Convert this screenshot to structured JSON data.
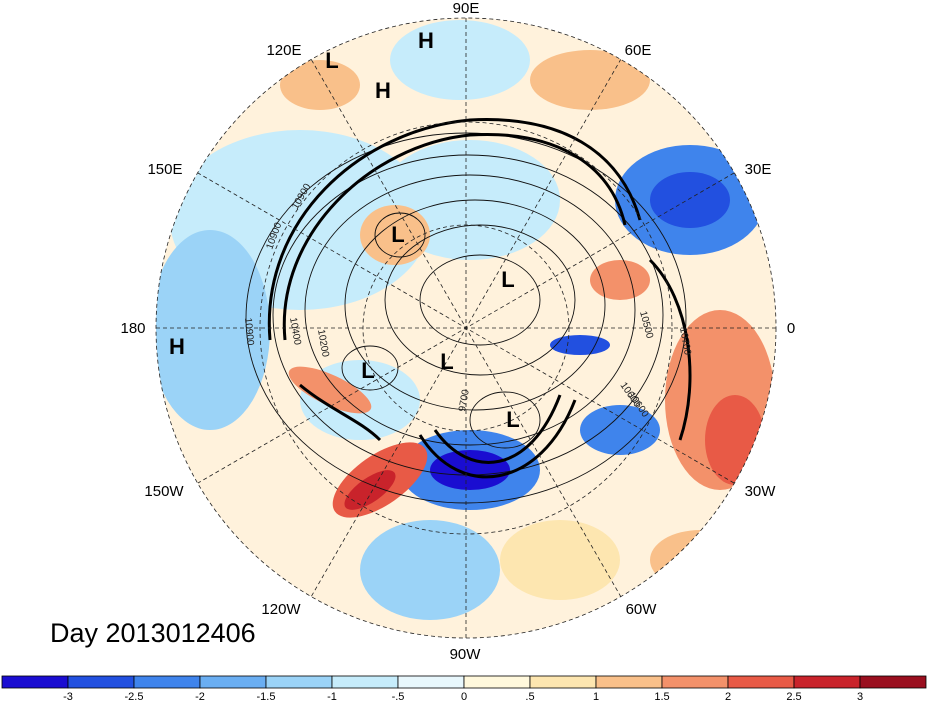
{
  "title": "Day 2013012406",
  "longitude_labels": [
    "90E",
    "60E",
    "30E",
    "0",
    "30W",
    "60W",
    "90W",
    "120W",
    "150W",
    "180",
    "150E",
    "120E"
  ],
  "pressure_centers": [
    {
      "type": "H"
    },
    {
      "type": "L"
    },
    {
      "type": "H"
    },
    {
      "type": "L"
    },
    {
      "type": "L"
    },
    {
      "type": "L"
    },
    {
      "type": "L"
    },
    {
      "type": "L"
    },
    {
      "type": "H"
    }
  ],
  "contour_labels": [
    "10900",
    "10900",
    "10900",
    "10400",
    "10200",
    "9700",
    "10600",
    "10600",
    "10500",
    "10700"
  ],
  "colorbar": {
    "ticks": [
      "-3",
      "-2.5",
      "-2",
      "-1.5",
      "-1",
      "-.5",
      "0",
      ".5",
      "1",
      "1.5",
      "2",
      "2.5",
      "3"
    ],
    "colors": [
      "#1a0dd1",
      "#2250e0",
      "#3f84ec",
      "#6aaef2",
      "#9bd3f7",
      "#c6ecfb",
      "#e8f7fc",
      "#fff8dc",
      "#fde6b0",
      "#f9c08a",
      "#f3916a",
      "#e85a46",
      "#c9232b",
      "#9a0f1f"
    ]
  }
}
